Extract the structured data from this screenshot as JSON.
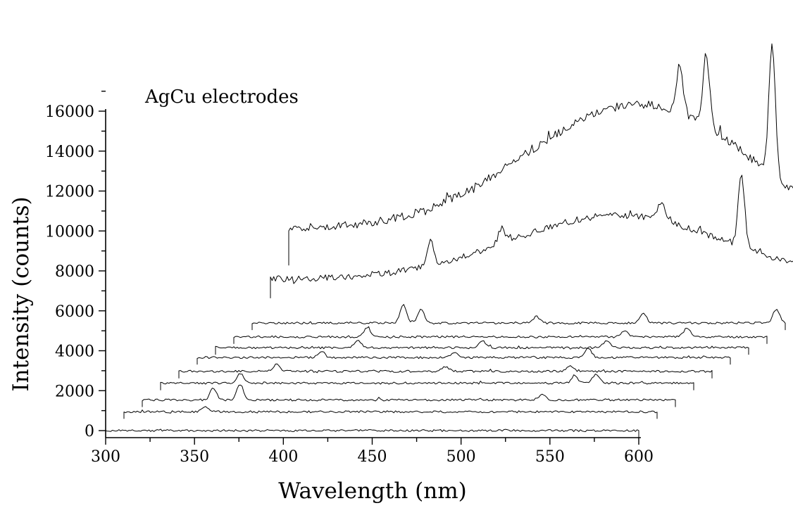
{
  "chart_data": {
    "type": "line",
    "subtype": "waterfall-offset-spectra",
    "title": "",
    "annotation": "AgCu electrodes",
    "xlabel": "Wavelength (nm)",
    "ylabel": "Intensity (counts)",
    "xlim": [
      300,
      610
    ],
    "ylim": [
      0,
      17500
    ],
    "x_ticks": [
      300,
      350,
      400,
      450,
      500,
      550,
      600
    ],
    "y_ticks": [
      0,
      2000,
      4000,
      6000,
      8000,
      10000,
      12000,
      14000,
      16000
    ],
    "x_tick_labels": [
      "300",
      "350",
      "400",
      "450",
      "500",
      "550",
      "600"
    ],
    "y_tick_labels": [
      "0",
      "2000",
      "4000",
      "6000",
      "8000",
      "10000",
      "12000",
      "14000",
      "16000"
    ],
    "grid": false,
    "legend": "none",
    "line_color": "#000000",
    "series": [
      {
        "baseline": 0,
        "peaks": []
      },
      {
        "baseline": 900,
        "peaks": [
          [
            346,
            250
          ]
        ]
      },
      {
        "baseline": 1450,
        "peaks": [
          [
            340,
            600
          ],
          [
            355,
            800
          ],
          [
            525,
            300
          ]
        ]
      },
      {
        "baseline": 2250,
        "peaks": [
          [
            345,
            500
          ],
          [
            533,
            350
          ],
          [
            545,
            450
          ]
        ]
      },
      {
        "baseline": 2800,
        "peaks": [
          [
            355,
            350
          ],
          [
            450,
            250
          ],
          [
            520,
            300
          ]
        ]
      },
      {
        "baseline": 3450,
        "peaks": [
          [
            370,
            300
          ],
          [
            445,
            300
          ],
          [
            520,
            500
          ]
        ]
      },
      {
        "baseline": 3900,
        "peaks": [
          [
            380,
            350
          ],
          [
            450,
            350
          ],
          [
            520,
            350
          ]
        ]
      },
      {
        "baseline": 4400,
        "peaks": [
          [
            375,
            450
          ],
          [
            520,
            300
          ],
          [
            555,
            450
          ]
        ]
      },
      {
        "baseline": 5050,
        "peaks": [
          [
            385,
            900
          ],
          [
            395,
            700
          ],
          [
            460,
            350
          ],
          [
            520,
            500
          ],
          [
            595,
            700
          ]
        ]
      },
      {
        "baseline": 6600,
        "peaks": [
          [
            390,
            1200
          ],
          [
            430,
            800
          ],
          [
            520,
            1000
          ],
          [
            565,
            3500
          ],
          [
            630,
            2000
          ]
        ]
      },
      {
        "baseline": 8200,
        "peaks": [
          [
            520,
            2500
          ],
          [
            535,
            3500
          ],
          [
            572,
            6500
          ],
          [
            610,
            2800
          ]
        ]
      }
    ]
  }
}
